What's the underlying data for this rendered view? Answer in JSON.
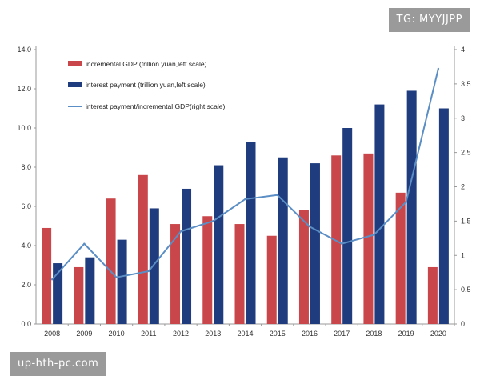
{
  "watermarks": {
    "top_right": "TG: MYYJJPP",
    "bottom_left": "up-hth-pc.com"
  },
  "colors": {
    "incremental_gdp": "#c9474a",
    "interest_payment": "#1f3c7e",
    "ratio_line": "#5b8ec4",
    "axis": "#999999"
  },
  "chart_data": {
    "type": "bar",
    "title": "",
    "categories": [
      "2008",
      "2009",
      "2010",
      "2011",
      "2012",
      "2013",
      "2014",
      "2015",
      "2016",
      "2017",
      "2018",
      "2019",
      "2020"
    ],
    "series": [
      {
        "name": "incremental GDP (trillion yuan,left scale)",
        "type": "bar",
        "axis": "left",
        "values": [
          4.9,
          2.9,
          6.4,
          7.6,
          5.1,
          5.5,
          5.1,
          4.5,
          5.8,
          8.6,
          8.7,
          6.7,
          2.9
        ]
      },
      {
        "name": "interest payment (trillion yuan,left scale)",
        "type": "bar",
        "axis": "left",
        "values": [
          3.1,
          3.4,
          4.3,
          5.9,
          6.9,
          8.1,
          9.3,
          8.5,
          8.2,
          10.0,
          11.2,
          11.9,
          11.0
        ]
      },
      {
        "name": "interest payment/incremental GDP(right scale)",
        "type": "line",
        "axis": "right",
        "values": [
          0.65,
          1.17,
          0.68,
          0.77,
          1.35,
          1.5,
          1.82,
          1.88,
          1.42,
          1.17,
          1.3,
          1.78,
          3.72
        ]
      }
    ],
    "left_axis": {
      "min": 0,
      "max": 14,
      "ticks": [
        "0.0",
        "2.0",
        "4.0",
        "6.0",
        "8.0",
        "10.0",
        "12.0",
        "14.0"
      ]
    },
    "right_axis": {
      "min": 0,
      "max": 4,
      "ticks": [
        "0",
        "0.5",
        "1",
        "1.5",
        "2",
        "2.5",
        "3",
        "3.5",
        "4"
      ]
    },
    "xlabel": "",
    "ylabel": "",
    "legend_position": "top-left"
  }
}
